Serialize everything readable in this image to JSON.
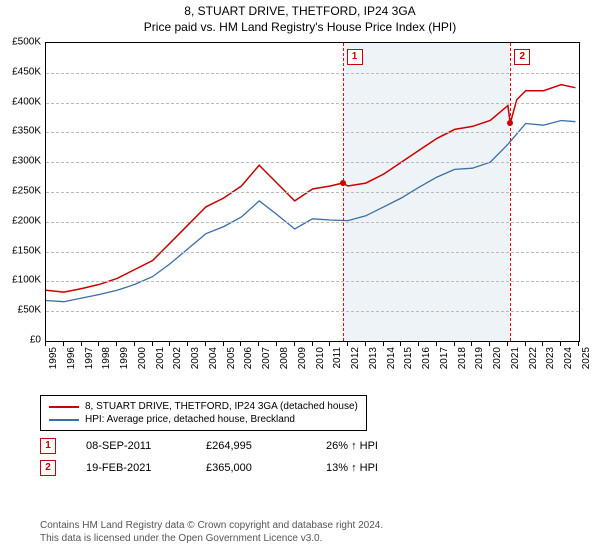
{
  "title": "8, STUART DRIVE, THETFORD, IP24 3GA",
  "subtitle": "Price paid vs. HM Land Registry's House Price Index (HPI)",
  "chart": {
    "type": "line",
    "ylim": [
      0,
      500000
    ],
    "ytick_step": 50000,
    "y_labels": [
      "£0",
      "£50K",
      "£100K",
      "£150K",
      "£200K",
      "£250K",
      "£300K",
      "£350K",
      "£400K",
      "£450K",
      "£500K"
    ],
    "xlim": [
      1995,
      2025
    ],
    "x_labels": [
      "1995",
      "1996",
      "1997",
      "1998",
      "1999",
      "2000",
      "2001",
      "2002",
      "2003",
      "2004",
      "2005",
      "2006",
      "2007",
      "2008",
      "2009",
      "2010",
      "2011",
      "2012",
      "2013",
      "2014",
      "2015",
      "2016",
      "2017",
      "2018",
      "2019",
      "2020",
      "2021",
      "2022",
      "2023",
      "2024",
      "2025"
    ],
    "background_color": "#ffffff",
    "shaded_band_color": "#eef3f8",
    "shaded_start": 2011.69,
    "shaded_end": 2021.13,
    "series": [
      {
        "name": "property",
        "label": "8, STUART DRIVE, THETFORD, IP24 3GA (detached house)",
        "color": "#cc0000",
        "width": 1.5,
        "data": [
          [
            1995,
            85000
          ],
          [
            1996,
            82000
          ],
          [
            1997,
            88000
          ],
          [
            1998,
            95000
          ],
          [
            1999,
            105000
          ],
          [
            2000,
            120000
          ],
          [
            2001,
            135000
          ],
          [
            2002,
            165000
          ],
          [
            2003,
            195000
          ],
          [
            2004,
            225000
          ],
          [
            2005,
            240000
          ],
          [
            2006,
            260000
          ],
          [
            2007,
            295000
          ],
          [
            2008,
            265000
          ],
          [
            2009,
            235000
          ],
          [
            2010,
            255000
          ],
          [
            2011,
            260000
          ],
          [
            2011.69,
            264995
          ],
          [
            2012,
            260000
          ],
          [
            2013,
            265000
          ],
          [
            2014,
            280000
          ],
          [
            2015,
            300000
          ],
          [
            2016,
            320000
          ],
          [
            2017,
            340000
          ],
          [
            2018,
            355000
          ],
          [
            2019,
            360000
          ],
          [
            2020,
            370000
          ],
          [
            2021,
            395000
          ],
          [
            2021.13,
            365000
          ],
          [
            2021.5,
            405000
          ],
          [
            2022,
            420000
          ],
          [
            2023,
            420000
          ],
          [
            2024,
            430000
          ],
          [
            2024.8,
            425000
          ]
        ]
      },
      {
        "name": "hpi",
        "label": "HPI: Average price, detached house, Breckland",
        "color": "#3a6ea5",
        "width": 1.3,
        "data": [
          [
            1995,
            68000
          ],
          [
            1996,
            66000
          ],
          [
            1997,
            72000
          ],
          [
            1998,
            78000
          ],
          [
            1999,
            85000
          ],
          [
            2000,
            95000
          ],
          [
            2001,
            108000
          ],
          [
            2002,
            130000
          ],
          [
            2003,
            155000
          ],
          [
            2004,
            180000
          ],
          [
            2005,
            192000
          ],
          [
            2006,
            208000
          ],
          [
            2007,
            235000
          ],
          [
            2008,
            212000
          ],
          [
            2009,
            188000
          ],
          [
            2010,
            205000
          ],
          [
            2011,
            203000
          ],
          [
            2012,
            202000
          ],
          [
            2013,
            210000
          ],
          [
            2014,
            225000
          ],
          [
            2015,
            240000
          ],
          [
            2016,
            258000
          ],
          [
            2017,
            275000
          ],
          [
            2018,
            288000
          ],
          [
            2019,
            290000
          ],
          [
            2020,
            300000
          ],
          [
            2021,
            330000
          ],
          [
            2022,
            365000
          ],
          [
            2023,
            362000
          ],
          [
            2024,
            370000
          ],
          [
            2024.8,
            368000
          ]
        ]
      }
    ],
    "markers": [
      {
        "id": "1",
        "year": 2011.69,
        "value": 264995,
        "color": "#cc0000"
      },
      {
        "id": "2",
        "year": 2021.13,
        "value": 365000,
        "color": "#cc0000"
      }
    ]
  },
  "legend": {
    "items": [
      {
        "color": "#cc0000",
        "label": "8, STUART DRIVE, THETFORD, IP24 3GA (detached house)"
      },
      {
        "color": "#3a6ea5",
        "label": "HPI: Average price, detached house, Breckland"
      }
    ]
  },
  "sales": [
    {
      "marker": "1",
      "date": "08-SEP-2011",
      "price": "£264,995",
      "delta": "26% ↑ HPI"
    },
    {
      "marker": "2",
      "date": "19-FEB-2021",
      "price": "£365,000",
      "delta": "13% ↑ HPI"
    }
  ],
  "footer": {
    "line1": "Contains HM Land Registry data © Crown copyright and database right 2024.",
    "line2": "This data is licensed under the Open Government Licence v3.0."
  }
}
